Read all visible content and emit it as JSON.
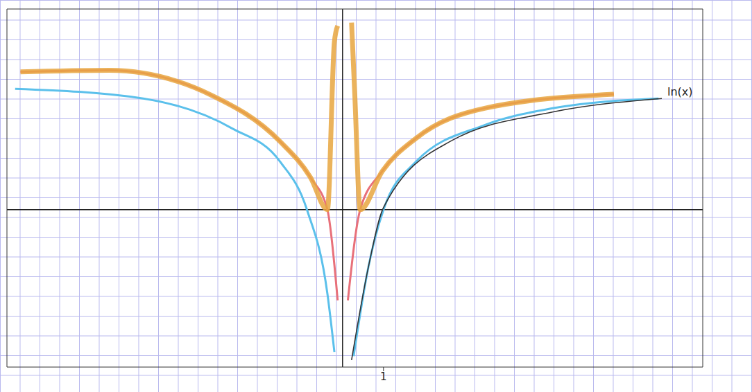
{
  "chart_data": {
    "type": "line",
    "grid": true,
    "tick_labels": "x",
    "xlim": [
      -8.2,
      8.8
    ],
    "ylim": [
      -2.9,
      3.7
    ],
    "xticks": [
      1
    ],
    "yticks": [],
    "series": [
      {
        "color": "#5bc0eb",
        "x": [
          -8.0,
          -4.87,
          -2.7,
          -1.53,
          -0.87,
          -0.37,
          -0.2,
          null,
          0.27,
          0.63,
          1.0,
          1.8,
          3.47,
          5.13,
          7.72
        ],
        "values": [
          2.23,
          2.05,
          1.5,
          0.89,
          0.0,
          -1.55,
          -2.62,
          null,
          -2.7,
          -1.06,
          0.0,
          0.89,
          1.56,
          1.87,
          2.05
        ]
      },
      {
        "color": "#e8707a",
        "x": [
          -7.87,
          -5.7,
          -3.2,
          -1.53,
          -0.78,
          -0.37,
          -0.12,
          null,
          0.13,
          0.43,
          0.97,
          1.8,
          3.47,
          6.63
        ],
        "values": [
          2.54,
          2.57,
          2.11,
          1.26,
          0.59,
          0.0,
          -1.67,
          null,
          -1.67,
          0.0,
          0.71,
          1.32,
          1.87,
          2.13
        ]
      },
      {
        "color": "#e8a640",
        "x": [
          -7.87,
          -5.7,
          -3.2,
          -1.53,
          -0.78,
          -0.37,
          -0.2,
          -0.12,
          null,
          0.22,
          0.3,
          0.43,
          0.97,
          1.8,
          3.47,
          6.63
        ],
        "values": [
          2.54,
          2.57,
          2.11,
          1.26,
          0.59,
          0.0,
          3.09,
          3.39,
          null,
          3.45,
          2.1,
          0.0,
          0.71,
          1.32,
          1.87,
          2.13
        ]
      },
      {
        "name": "ln(x)",
        "color": "#333333",
        "x": [
          0.22,
          0.63,
          1.0,
          2.63,
          5.13,
          7.8
        ],
        "values": [
          -2.77,
          -1.06,
          0.04,
          1.26,
          1.8,
          2.05
        ]
      }
    ]
  }
}
